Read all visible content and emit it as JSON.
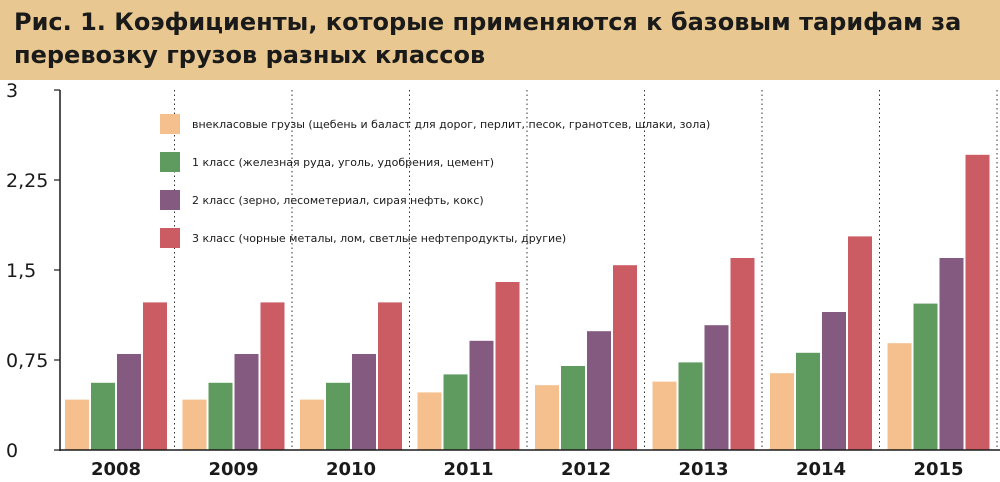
{
  "title": "Рис. 1. Коэфициенты, которые применяются к базовым тарифам за перевозку грузов разных классов",
  "chart_data": {
    "type": "bar",
    "title": "Рис. 1. Коэфициенты, которые применяются к базовым тарифам за перевозку грузов разных классов",
    "xlabel": "",
    "ylabel": "",
    "ylim": [
      0,
      3
    ],
    "yticks": [
      0,
      0.75,
      1.5,
      2.25,
      3
    ],
    "ytick_labels": [
      "0",
      "0,75",
      "1,5",
      "2,25",
      "3"
    ],
    "grid": "dotted-vertical",
    "legend_position": "top-left",
    "categories": [
      "2008",
      "2009",
      "2010",
      "2011",
      "2012",
      "2013",
      "2014",
      "2015"
    ],
    "series": [
      {
        "name": "внекласовые грузы (щебень и баласт для дорог, перлит, песок, гранотсев, шлаки, зола)",
        "color": "#f5c08e",
        "values": [
          0.42,
          0.42,
          0.42,
          0.48,
          0.54,
          0.57,
          0.64,
          0.89
        ]
      },
      {
        "name": "1 класс (железная руда, уголь, удобрения, цемент)",
        "color": "#5f9a5f",
        "values": [
          0.56,
          0.56,
          0.56,
          0.63,
          0.7,
          0.73,
          0.81,
          1.22
        ]
      },
      {
        "name": "2 класс (зерно, лесометериал, сирая нефть, кокс)",
        "color": "#855a80",
        "values": [
          0.8,
          0.8,
          0.8,
          0.91,
          0.99,
          1.04,
          1.15,
          1.6
        ]
      },
      {
        "name": "3 класс (чорные металы, лом, светлые нефтепродукты, другие)",
        "color": "#cc5c64",
        "values": [
          1.23,
          1.23,
          1.23,
          1.4,
          1.54,
          1.6,
          1.78,
          2.46
        ]
      }
    ]
  }
}
